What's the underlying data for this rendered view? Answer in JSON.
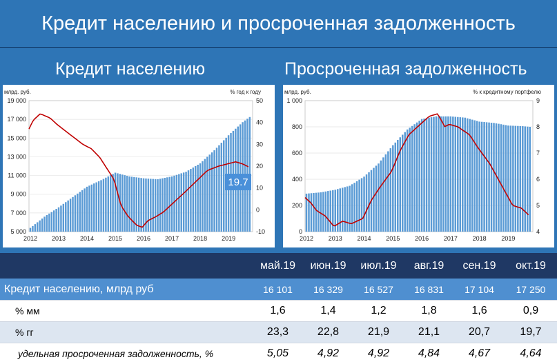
{
  "header": {
    "title": "Кредит населению и просроченная задолженность"
  },
  "subtitles": {
    "left": "Кредит населению",
    "right": "Просроченная задолженность"
  },
  "colors": {
    "background": "#2e75b6",
    "header_rule": "#0b2f5a",
    "bar": "#5b9bd5",
    "line": "#c00000",
    "table_head": "#1f3864",
    "credit_row": "#4f8fd0"
  },
  "chart_data": [
    {
      "type": "bar+line",
      "ylabel_left": "млрд. руб.",
      "ylabel_right": "% год к году",
      "ylim_left": [
        5000,
        19000
      ],
      "ylim_right": [
        -10,
        50
      ],
      "yticks_left": [
        "19 000",
        "17 000",
        "15 000",
        "13 000",
        "11 000",
        "9 000",
        "7 000",
        "5 000"
      ],
      "yticks_right": [
        "50",
        "40",
        "30",
        "20",
        "10",
        "0",
        "-10"
      ],
      "xticks": [
        "2012",
        "2013",
        "2014",
        "2015",
        "2016",
        "2017",
        "2018",
        "2019"
      ],
      "x_start": 2012.0,
      "step": 0.0833333,
      "bar_anchors": [
        [
          2012.0,
          5400
        ],
        [
          2012.5,
          6600
        ],
        [
          2013.0,
          7600
        ],
        [
          2013.5,
          8700
        ],
        [
          2014.0,
          9800
        ],
        [
          2014.5,
          10500
        ],
        [
          2015.0,
          11300
        ],
        [
          2015.5,
          10900
        ],
        [
          2016.0,
          10700
        ],
        [
          2016.5,
          10600
        ],
        [
          2017.0,
          10900
        ],
        [
          2017.5,
          11400
        ],
        [
          2018.0,
          12300
        ],
        [
          2018.5,
          13700
        ],
        [
          2019.0,
          15300
        ],
        [
          2019.5,
          16700
        ],
        [
          2019.75,
          17250
        ]
      ],
      "line_anchors": [
        [
          2012.0,
          37
        ],
        [
          2012.15,
          41
        ],
        [
          2012.4,
          44
        ],
        [
          2012.75,
          42
        ],
        [
          2013.0,
          39
        ],
        [
          2013.5,
          34
        ],
        [
          2013.9,
          30
        ],
        [
          2014.2,
          28
        ],
        [
          2014.5,
          24
        ],
        [
          2014.8,
          18
        ],
        [
          2015.0,
          14
        ],
        [
          2015.25,
          2
        ],
        [
          2015.5,
          -3
        ],
        [
          2015.8,
          -7
        ],
        [
          2016.0,
          -8
        ],
        [
          2016.2,
          -5
        ],
        [
          2016.5,
          -3
        ],
        [
          2016.75,
          -1
        ],
        [
          2017.0,
          2
        ],
        [
          2017.5,
          8
        ],
        [
          2017.9,
          13
        ],
        [
          2018.3,
          18
        ],
        [
          2018.7,
          20
        ],
        [
          2019.0,
          21
        ],
        [
          2019.3,
          22
        ],
        [
          2019.55,
          21
        ],
        [
          2019.75,
          19.7
        ]
      ],
      "annotation": "19.7"
    },
    {
      "type": "bar+line",
      "ylabel_left": "млрд. руб.",
      "ylabel_right": "% к кредитному портфелю",
      "ylim_left": [
        0,
        1000
      ],
      "ylim_right": [
        4,
        9
      ],
      "yticks_left": [
        "1 000",
        "800",
        "600",
        "400",
        "200",
        "0"
      ],
      "yticks_right": [
        "9",
        "8",
        "7",
        "6",
        "5",
        "4"
      ],
      "xticks": [
        "2012",
        "2013",
        "2014",
        "2015",
        "2016",
        "2017",
        "2018",
        "2019"
      ],
      "x_start": 2012.0,
      "step": 0.0833333,
      "bar_anchors": [
        [
          2012.0,
          290
        ],
        [
          2012.5,
          300
        ],
        [
          2013.0,
          320
        ],
        [
          2013.5,
          350
        ],
        [
          2014.0,
          420
        ],
        [
          2014.5,
          520
        ],
        [
          2015.0,
          660
        ],
        [
          2015.5,
          780
        ],
        [
          2016.0,
          860
        ],
        [
          2016.5,
          880
        ],
        [
          2017.0,
          880
        ],
        [
          2017.5,
          870
        ],
        [
          2018.0,
          840
        ],
        [
          2018.5,
          830
        ],
        [
          2019.0,
          810
        ],
        [
          2019.5,
          805
        ],
        [
          2019.75,
          800
        ]
      ],
      "line_anchors": [
        [
          2012.0,
          5.3
        ],
        [
          2012.2,
          5.1
        ],
        [
          2012.4,
          4.8
        ],
        [
          2012.7,
          4.6
        ],
        [
          2013.0,
          4.2
        ],
        [
          2013.3,
          4.4
        ],
        [
          2013.6,
          4.3
        ],
        [
          2014.0,
          4.5
        ],
        [
          2014.3,
          5.2
        ],
        [
          2014.6,
          5.7
        ],
        [
          2015.0,
          6.3
        ],
        [
          2015.3,
          7.1
        ],
        [
          2015.6,
          7.7
        ],
        [
          2016.0,
          8.1
        ],
        [
          2016.3,
          8.4
        ],
        [
          2016.6,
          8.5
        ],
        [
          2016.85,
          8.0
        ],
        [
          2017.0,
          8.1
        ],
        [
          2017.3,
          8.0
        ],
        [
          2017.7,
          7.7
        ],
        [
          2018.0,
          7.2
        ],
        [
          2018.4,
          6.6
        ],
        [
          2018.7,
          6.0
        ],
        [
          2019.0,
          5.4
        ],
        [
          2019.2,
          5.0
        ],
        [
          2019.5,
          4.9
        ],
        [
          2019.75,
          4.64
        ]
      ]
    }
  ],
  "table": {
    "months": [
      "май.19",
      "июн.19",
      "июл.19",
      "авг.19",
      "сен.19",
      "окт.19"
    ],
    "rows": [
      {
        "label": "Кредит населению, млрд руб",
        "values": [
          "16 101",
          "16 329",
          "16 527",
          "16 831",
          "17 104",
          "17 250"
        ]
      },
      {
        "label": "% мм",
        "values": [
          "1,6",
          "1,4",
          "1,2",
          "1,8",
          "1,6",
          "0,9"
        ]
      },
      {
        "label": "% гг",
        "values": [
          "23,3",
          "22,8",
          "21,9",
          "21,1",
          "20,7",
          "19,7"
        ]
      },
      {
        "label": "удельная просроченная задолженность, %",
        "values": [
          "5,05",
          "4,92",
          "4,92",
          "4,84",
          "4,67",
          "4,64"
        ]
      }
    ]
  }
}
